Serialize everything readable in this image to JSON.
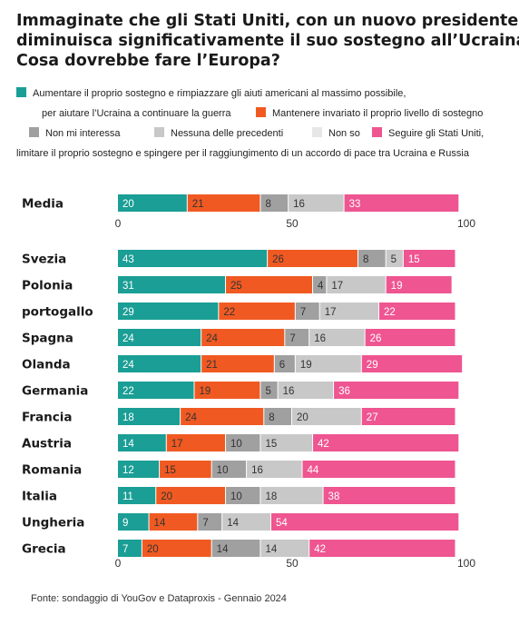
{
  "title_lines": [
    "Immaginate che gli Stati Uniti, con un nuovo presidente,",
    "diminuisca significativamente il suo sostegno all’Ucraina.",
    "Cosa dovrebbe fare l’Europa?"
  ],
  "legend_lines": [
    [
      {
        "series": 0,
        "text": "Aumentare il proprio sostegno e rimpiazzare gli aiuti americani al massimo possibile,"
      }
    ],
    [
      {
        "series": -1,
        "text": "per aiutare l’Ucraina a continuare la guerra"
      },
      {
        "series": 1,
        "text": "Mantenere invariato il proprio livello di sostegno"
      }
    ],
    [
      {
        "series": 2,
        "text": "Non mi interessa"
      },
      {
        "series": 3,
        "text": "Nessuna delle precedenti"
      },
      {
        "series": 4,
        "text": "Non so"
      },
      {
        "series": 5,
        "text": "Seguire gli Stati Uniti,"
      }
    ],
    [
      {
        "series": -1,
        "text": "limitare il proprio sostegno e spingere per il raggiungimento di un accordo di pace tra Ucraina e Russia"
      }
    ]
  ],
  "source": "Fonte: sondaggio di YouGov e Dataproxis - Gennaio 2024",
  "colors": {
    "series": [
      "#1a9e95",
      "#f05a22",
      "#a0a0a0",
      "#c8c8c8",
      "#e6e6e6",
      "#ee5591"
    ],
    "label_light": "#ffffff",
    "label_dark": "#333333"
  },
  "chart_data": [
    {
      "type": "bar",
      "orientation": "horizontal",
      "stacked": true,
      "categories": [
        "Media"
      ],
      "series": [
        {
          "name": "Aumentare il proprio sostegno e rimpiazzare gli aiuti americani al massimo possibile, per aiutare l’Ucraina a continuare la guerra",
          "values": [
            20
          ]
        },
        {
          "name": "Mantenere invariato il proprio livello di sostegno",
          "values": [
            21
          ]
        },
        {
          "name": "Non mi interessa",
          "values": [
            8
          ]
        },
        {
          "name": "Nessuna delle precedenti",
          "values": [
            16
          ]
        },
        {
          "name": "Non so",
          "values": [
            0
          ]
        },
        {
          "name": "Seguire gli Stati Uniti, limitare il proprio sostegno e spingere per il raggiungimento di un accordo di pace tra Ucraina e Russia",
          "values": [
            33
          ]
        }
      ],
      "xlim": [
        0,
        100
      ],
      "xticks": [
        0,
        50,
        100
      ]
    },
    {
      "type": "bar",
      "orientation": "horizontal",
      "stacked": true,
      "categories": [
        "Svezia",
        "Polonia",
        "portogallo",
        "Spagna",
        "Olanda",
        "Germania",
        "Francia",
        "Austria",
        "Romania",
        "Italia",
        "Ungheria",
        "Grecia"
      ],
      "series": [
        {
          "name": "Aumentare il proprio sostegno e rimpiazzare gli aiuti americani al massimo possibile, per aiutare l’Ucraina a continuare la guerra",
          "values": [
            43,
            31,
            29,
            24,
            24,
            22,
            18,
            14,
            12,
            11,
            9,
            7
          ]
        },
        {
          "name": "Mantenere invariato il proprio livello di sostegno",
          "values": [
            26,
            25,
            22,
            24,
            21,
            19,
            24,
            17,
            15,
            20,
            14,
            20
          ]
        },
        {
          "name": "Non mi interessa",
          "values": [
            8,
            4,
            7,
            7,
            6,
            5,
            8,
            10,
            10,
            10,
            7,
            14
          ]
        },
        {
          "name": "Nessuna delle precedenti",
          "values": [
            5,
            17,
            17,
            16,
            19,
            16,
            20,
            15,
            16,
            18,
            14,
            14
          ]
        },
        {
          "name": "Non so",
          "values": [
            0,
            0,
            0,
            0,
            0,
            0,
            0,
            0,
            0,
            0,
            0,
            0
          ]
        },
        {
          "name": "Seguire gli Stati Uniti, limitare il proprio sostegno e spingere per il raggiungimento di un accordo di pace tra Ucraina e Russia",
          "values": [
            15,
            19,
            22,
            26,
            29,
            36,
            27,
            42,
            44,
            38,
            54,
            42
          ]
        }
      ],
      "xlim": [
        0,
        100
      ],
      "xticks": [
        0,
        50,
        100
      ]
    }
  ]
}
